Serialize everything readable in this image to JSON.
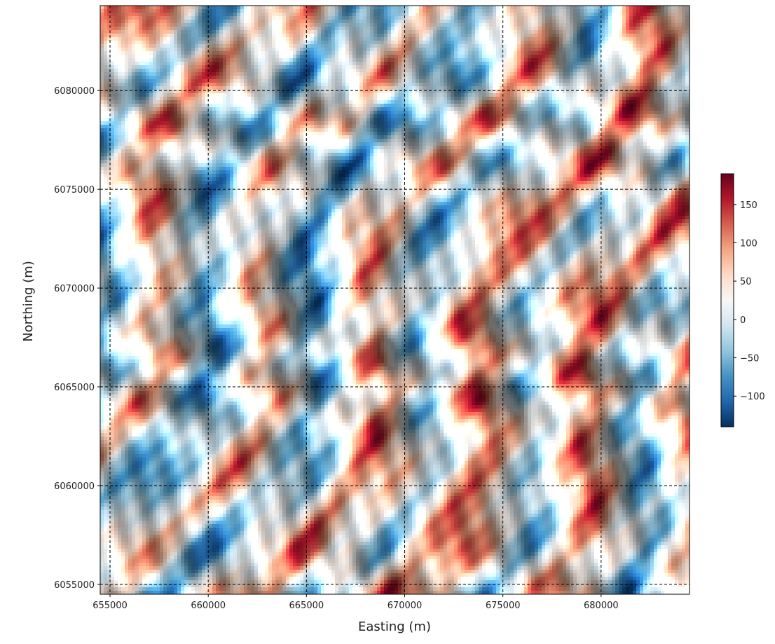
{
  "chart_data": {
    "type": "heatmap",
    "title": "",
    "xlabel": "Easting (m)",
    "ylabel": "Northing (m)",
    "xlim": [
      654500,
      684500
    ],
    "ylim": [
      6054500,
      6084300
    ],
    "x_ticks": [
      655000,
      660000,
      665000,
      670000,
      675000,
      680000
    ],
    "y_ticks": [
      6055000,
      6060000,
      6065000,
      6070000,
      6075000,
      6080000
    ],
    "x_tick_labels": [
      "655000",
      "660000",
      "665000",
      "670000",
      "675000",
      "680000"
    ],
    "y_tick_labels": [
      "6055000",
      "6060000",
      "6065000",
      "6070000",
      "6075000",
      "6080000"
    ],
    "grid": "on (dashed black)",
    "hillshade": true,
    "colormap": "RdBu_r",
    "colormap_stops": [
      "#053061",
      "#2166ac",
      "#4393c3",
      "#92c5de",
      "#d1e5f0",
      "#f7f7f7",
      "#fddbc7",
      "#f4a582",
      "#d6604d",
      "#b2182b",
      "#67001f"
    ],
    "colorbar": {
      "range": [
        -140,
        190
      ],
      "ticks": [
        -100,
        -50,
        0,
        50,
        100,
        150
      ],
      "tick_labels": [
        "−100",
        "−50",
        "0",
        "50",
        "100",
        "150"
      ],
      "placement": "right"
    }
  }
}
